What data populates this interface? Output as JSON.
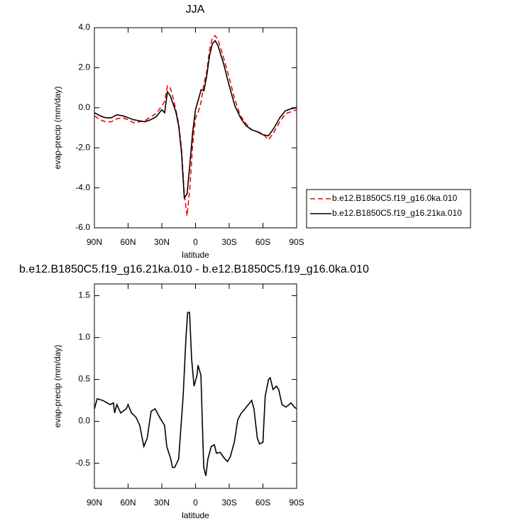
{
  "chart_data": [
    {
      "type": "line",
      "title": "JJA",
      "x_label": "latitude",
      "y_label": "evap-precip (mm/day)",
      "x": [
        90,
        85,
        80,
        75,
        70,
        65,
        60,
        55,
        50,
        45,
        40,
        35,
        30,
        27.5,
        25,
        22.5,
        20,
        17.5,
        15,
        12.5,
        10,
        7.5,
        5,
        2.5,
        0,
        -2.5,
        -5,
        -7.5,
        -10,
        -12.5,
        -15,
        -17.5,
        -20,
        -25,
        -30,
        -35,
        -40,
        -45,
        -50,
        -55,
        -60,
        -65,
        -70,
        -75,
        -80,
        -85,
        -90
      ],
      "series": [
        {
          "name": "b.e12.B1850C5.f19_g16.0ka.010",
          "color": "#ff0000",
          "dash": "dashed",
          "values": [
            -0.4,
            -0.6,
            -0.7,
            -0.7,
            -0.55,
            -0.5,
            -0.6,
            -0.75,
            -0.7,
            -0.65,
            -0.45,
            -0.3,
            0.1,
            0.3,
            1.1,
            1.0,
            0.5,
            -0.1,
            -0.8,
            -2.0,
            -4.3,
            -5.4,
            -4.0,
            -1.8,
            -0.5,
            -0.2,
            0.3,
            1.2,
            1.8,
            2.9,
            3.5,
            3.6,
            3.4,
            2.5,
            1.5,
            0.4,
            -0.4,
            -0.8,
            -1.1,
            -1.2,
            -1.3,
            -1.6,
            -1.2,
            -0.7,
            -0.3,
            -0.2,
            -0.1
          ]
        },
        {
          "name": "b.e12.B1850C5.f19_g16.21ka.010",
          "color": "#000000",
          "dash": "solid",
          "values": [
            -0.25,
            -0.4,
            -0.5,
            -0.5,
            -0.35,
            -0.4,
            -0.5,
            -0.6,
            -0.65,
            -0.7,
            -0.6,
            -0.45,
            -0.1,
            -0.25,
            0.8,
            0.6,
            0.2,
            -0.2,
            -0.9,
            -2.2,
            -4.5,
            -4.3,
            -2.8,
            -1.2,
            -0.1,
            0.4,
            0.9,
            0.85,
            1.6,
            2.6,
            3.2,
            3.35,
            3.1,
            2.2,
            1.1,
            0.1,
            -0.5,
            -0.9,
            -1.1,
            -1.2,
            -1.35,
            -1.4,
            -1.0,
            -0.5,
            -0.15,
            -0.05,
            0.0
          ]
        }
      ],
      "xlim": [
        90,
        -90
      ],
      "xticks": [
        {
          "value": 90,
          "label": "90N"
        },
        {
          "value": 60,
          "label": "60N"
        },
        {
          "value": 30,
          "label": "30N"
        },
        0,
        {
          "value": -30,
          "label": "30S"
        },
        {
          "value": -60,
          "label": "60S"
        },
        {
          "value": -90,
          "label": "90S"
        }
      ],
      "ylim": [
        -6,
        4
      ],
      "yticks": [
        {
          "value": 4,
          "label": "4.0"
        },
        {
          "value": 2,
          "label": "2.0"
        },
        {
          "value": 0,
          "label": "0.0"
        },
        {
          "value": -2,
          "label": "-2.0"
        },
        {
          "value": -4,
          "label": "-4.0"
        },
        {
          "value": -6,
          "label": "-6.0"
        }
      ],
      "legend": "right",
      "grid": false
    },
    {
      "type": "line",
      "title": "b.e12.B1850C5.f19_g16.21ka.010 - b.e12.B1850C5.f19_g16.0ka.010",
      "x_label": "latitude",
      "y_label": "evap-precip (mm/day)",
      "x": [
        90,
        87.5,
        82.5,
        76,
        73,
        72,
        70,
        66.6,
        61.6,
        60,
        57,
        53,
        49.6,
        46,
        43,
        39.5,
        36,
        32,
        27.5,
        25.6,
        22,
        20.5,
        18.6,
        15,
        11,
        8.5,
        7,
        5.3,
        3.5,
        1.3,
        -1.3,
        -2.2,
        -4.8,
        -7.3,
        -9.2,
        -11,
        -14,
        -16.8,
        -18.6,
        -22,
        -25,
        -28.5,
        -31,
        -34.5,
        -37.6,
        -40.8,
        -44,
        -47,
        -50,
        -52,
        -55,
        -57,
        -60,
        -62,
        -65,
        -66.5,
        -69,
        -72,
        -74,
        -77,
        -80.5,
        -85,
        -88,
        -90
      ],
      "series": [
        {
          "color": "#000000",
          "dash": "solid",
          "values": [
            0.15,
            0.27,
            0.25,
            0.2,
            0.22,
            0.1,
            0.2,
            0.1,
            0.15,
            0.2,
            0.1,
            0.05,
            -0.05,
            -0.3,
            -0.2,
            0.12,
            0.15,
            0.05,
            -0.05,
            -0.3,
            -0.45,
            -0.55,
            -0.55,
            -0.45,
            0.3,
            1.0,
            1.3,
            1.3,
            0.75,
            0.42,
            0.55,
            0.67,
            0.55,
            -0.55,
            -0.65,
            -0.45,
            -0.3,
            -0.28,
            -0.38,
            -0.37,
            -0.43,
            -0.48,
            -0.42,
            -0.25,
            0.02,
            0.1,
            0.15,
            0.2,
            0.25,
            0.15,
            -0.2,
            -0.27,
            -0.25,
            0.3,
            0.5,
            0.52,
            0.38,
            0.42,
            0.38,
            0.2,
            0.17,
            0.22,
            0.17,
            0.15
          ]
        }
      ],
      "xlim": [
        90,
        -90
      ],
      "xticks": [
        {
          "value": 90,
          "label": "90N"
        },
        {
          "value": 60,
          "label": "60N"
        },
        {
          "value": 30,
          "label": "30N"
        },
        0,
        {
          "value": -30,
          "label": "30S"
        },
        {
          "value": -60,
          "label": "60S"
        },
        {
          "value": -90,
          "label": "90S"
        }
      ],
      "ylim": [
        -0.8,
        1.64
      ],
      "yticks": [
        1.5,
        {
          "value": 1,
          "label": "1.0"
        },
        0.5,
        {
          "value": 0,
          "label": "0.0"
        },
        -0.5
      ],
      "grid": false
    }
  ]
}
